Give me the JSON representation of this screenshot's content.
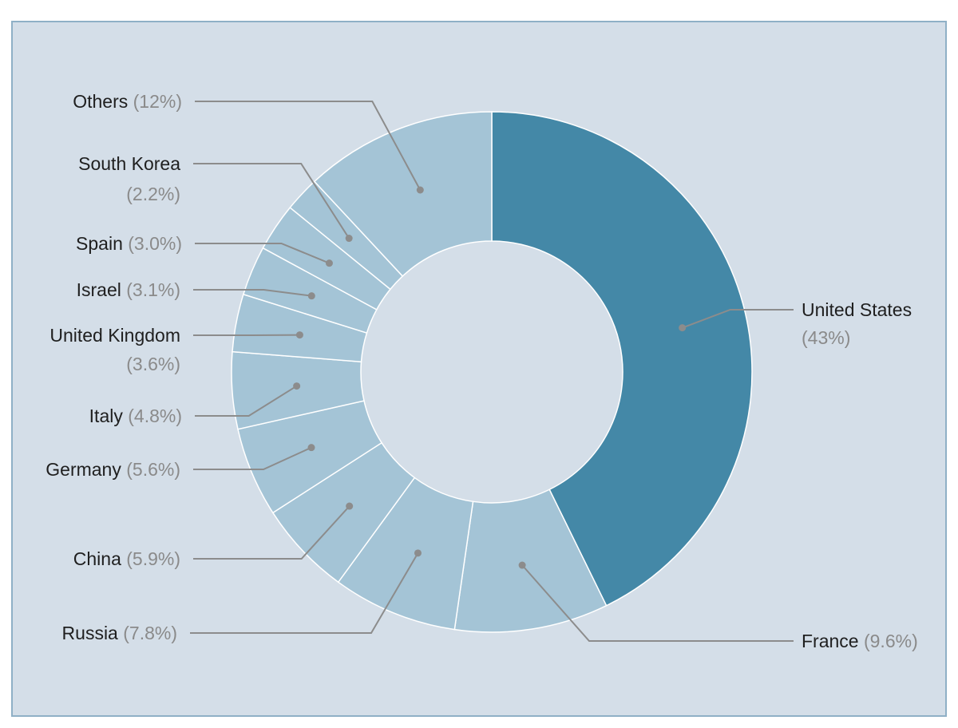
{
  "chart_data": {
    "type": "pie",
    "donut": true,
    "title": "",
    "colors": {
      "highlight": "#4488a7",
      "slice": "#a4c4d6",
      "background": "#d4dee8",
      "border": "#8fb0c6",
      "leader": "#8c8c8c",
      "label": "#1f1f1f",
      "percent": "#8a8a8a"
    },
    "slices": [
      {
        "label": "United States",
        "value": 43,
        "value_text": "(43%)",
        "highlight": true
      },
      {
        "label": "France",
        "value": 9.6,
        "value_text": "(9.6%)"
      },
      {
        "label": "Russia",
        "value": 7.8,
        "value_text": "(7.8%)"
      },
      {
        "label": "China",
        "value": 5.9,
        "value_text": "(5.9%)"
      },
      {
        "label": "Germany",
        "value": 5.6,
        "value_text": "(5.6%)"
      },
      {
        "label": "Italy",
        "value": 4.8,
        "value_text": "(4.8%)"
      },
      {
        "label": "United Kingdom",
        "value": 3.6,
        "value_text": "(3.6%)"
      },
      {
        "label": "Israel",
        "value": 3.1,
        "value_text": "(3.1%)"
      },
      {
        "label": "Spain",
        "value": 3.0,
        "value_text": "(3.0%)"
      },
      {
        "label": "South Korea",
        "value": 2.2,
        "value_text": "(2.2%)"
      },
      {
        "label": "Others",
        "value": 12,
        "value_text": "(12%)"
      }
    ]
  }
}
